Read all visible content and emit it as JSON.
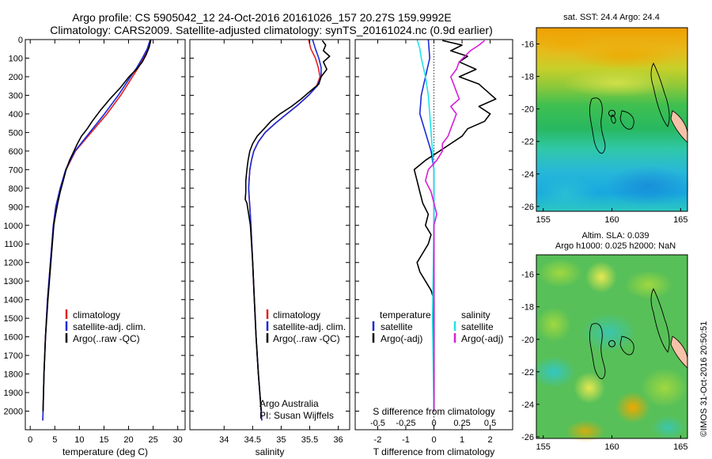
{
  "header": {
    "line1": "Argo profile: CS 5905042_12 24-Oct-2016 20161026_157 20.27S 159.9992E",
    "line2": "Climatology: CARS2009. Satellite-adjusted climatology: synTS_20161024.nc (0.9d earlier)"
  },
  "colors": {
    "climatology": "#e4201c",
    "satellite": "#1a2bd8",
    "argo": "#000000",
    "sat_salinity": "#1fe3e8",
    "argo_salinity": "#d81fd8"
  },
  "chart_data": [
    {
      "type": "line",
      "name": "temperature-profile",
      "xlabel": "temperature (deg C)",
      "xlim": [
        -1,
        31.5
      ],
      "ylim": [
        2100,
        0
      ],
      "xticks": [
        0,
        5,
        10,
        15,
        20,
        25,
        30
      ],
      "yticks": [
        0,
        100,
        200,
        300,
        400,
        500,
        600,
        700,
        800,
        900,
        1000,
        1100,
        1200,
        1300,
        1400,
        1500,
        1600,
        1700,
        1800,
        1900,
        2000
      ],
      "legend": [
        "climatology",
        "satellite-adj. clim.",
        "Argo(..raw -QC)"
      ],
      "series": [
        {
          "name": "climatology",
          "depth": [
            0,
            50,
            100,
            150,
            200,
            300,
            400,
            500,
            600,
            700,
            800,
            900,
            1000,
            1200,
            1400,
            1600,
            1800,
            2000,
            2050
          ],
          "values": [
            24.6,
            24.0,
            23.0,
            22.0,
            20.8,
            18.4,
            15.6,
            12.4,
            9.2,
            7.3,
            6.1,
            5.2,
            4.7,
            4.1,
            3.5,
            3.1,
            2.8,
            2.6,
            2.55
          ]
        },
        {
          "name": "satellite-adj. clim.",
          "depth": [
            0,
            50,
            100,
            150,
            200,
            300,
            400,
            500,
            600,
            700,
            800,
            900,
            1000,
            1200,
            1400,
            1600,
            1800,
            2000,
            2050
          ],
          "values": [
            24.4,
            23.8,
            22.8,
            21.7,
            20.4,
            17.9,
            15.1,
            12.1,
            9.1,
            7.2,
            6.1,
            5.2,
            4.7,
            4.1,
            3.5,
            3.1,
            2.8,
            2.6,
            2.55
          ]
        },
        {
          "name": "Argo(..raw -QC)",
          "depth": [
            5,
            40,
            80,
            120,
            160,
            200,
            260,
            320,
            380,
            440,
            480,
            520,
            560,
            600,
            650,
            700,
            760,
            820,
            880,
            950,
            1000,
            1200,
            1400,
            1600,
            1800,
            2000
          ],
          "values": [
            24.5,
            24.2,
            23.6,
            22.8,
            21.6,
            20.1,
            18.3,
            16.2,
            14.3,
            12.6,
            11.6,
            10.4,
            9.6,
            8.9,
            8.0,
            7.3,
            6.7,
            6.1,
            5.6,
            5.1,
            4.8,
            4.2,
            3.6,
            3.1,
            2.8,
            2.6
          ]
        }
      ]
    },
    {
      "type": "line",
      "name": "salinity-profile",
      "xlabel": "salinity",
      "xlim": [
        33.4,
        36.2
      ],
      "ylim": [
        2100,
        0
      ],
      "xticks": [
        34,
        34.5,
        35,
        35.5,
        36
      ],
      "legend": [
        "climatology",
        "satellite-adj. clim.",
        "Argo(..raw -QC)"
      ],
      "note": [
        "Argo Australia",
        "PI: Susan Wijffels"
      ],
      "series": [
        {
          "name": "climatology",
          "depth": [
            0,
            50,
            100,
            150,
            200,
            250,
            300,
            350,
            400,
            450,
            500,
            550,
            600,
            650,
            700,
            750,
            800,
            850,
            900,
            1000,
            1200,
            1400,
            1600,
            1800,
            2000,
            2050
          ],
          "values": [
            35.48,
            35.52,
            35.6,
            35.65,
            35.68,
            35.62,
            35.48,
            35.3,
            35.1,
            34.9,
            34.72,
            34.6,
            34.52,
            34.48,
            34.45,
            34.44,
            34.43,
            34.44,
            34.45,
            34.47,
            34.5,
            34.53,
            34.56,
            34.6,
            34.65,
            34.66
          ]
        },
        {
          "name": "satellite-adj. clim.",
          "depth": [
            0,
            50,
            100,
            150,
            200,
            250,
            300,
            350,
            400,
            450,
            500,
            550,
            600,
            650,
            700,
            750,
            800,
            850,
            900,
            1000,
            1200,
            1400,
            1600,
            1800,
            2000,
            2050
          ],
          "values": [
            35.55,
            35.6,
            35.66,
            35.7,
            35.7,
            35.63,
            35.48,
            35.3,
            35.1,
            34.9,
            34.72,
            34.6,
            34.52,
            34.48,
            34.45,
            34.44,
            34.43,
            34.44,
            34.45,
            34.47,
            34.5,
            34.53,
            34.56,
            34.6,
            34.65,
            34.66
          ]
        },
        {
          "name": "Argo(..raw -QC)",
          "depth": [
            5,
            30,
            60,
            90,
            120,
            160,
            200,
            240,
            280,
            320,
            360,
            400,
            440,
            480,
            520,
            560,
            600,
            650,
            700,
            760,
            820,
            860,
            880,
            920,
            1000,
            1200,
            1400,
            1600,
            1800,
            2000
          ],
          "values": [
            35.72,
            35.78,
            35.74,
            35.85,
            35.74,
            35.8,
            35.7,
            35.66,
            35.5,
            35.35,
            35.18,
            34.98,
            34.82,
            34.7,
            34.58,
            34.5,
            34.45,
            34.42,
            34.4,
            34.38,
            34.38,
            34.37,
            34.4,
            34.42,
            34.46,
            34.5,
            34.53,
            34.56,
            34.6,
            34.65
          ]
        }
      ]
    },
    {
      "type": "line",
      "name": "difference-profile",
      "xlabel_top": "S difference from climatology",
      "xlabel": "T difference from climatology",
      "xlim": [
        -2.8,
        2.8
      ],
      "ylim": [
        2100,
        0
      ],
      "xticks": [
        -2,
        -1,
        0,
        1,
        2
      ],
      "xticks_top": [
        "-0.5",
        "-0.25",
        "0",
        "0.25",
        "0.5"
      ],
      "xticks_top_pos": [
        -2,
        -1,
        0,
        1,
        2
      ],
      "legend_titles": [
        "temperature",
        "salinity"
      ],
      "legend": [
        "satellite",
        "Argo(-adj)",
        "satellite",
        "Argo(-adj)"
      ],
      "series": [
        {
          "name": "temperature satellite",
          "depth": [
            0,
            100,
            200,
            300,
            400,
            500,
            600,
            700,
            800,
            1000,
            2000
          ],
          "values": [
            -0.2,
            -0.15,
            -0.3,
            -0.45,
            -0.5,
            -0.3,
            -0.1,
            0,
            0,
            0,
            0
          ]
        },
        {
          "name": "temperature Argo(-adj)",
          "depth": [
            5,
            30,
            60,
            90,
            120,
            160,
            200,
            240,
            280,
            320,
            360,
            400,
            440,
            480,
            520,
            560,
            600,
            650,
            700,
            760,
            820,
            880,
            940,
            1000,
            1050,
            1100,
            1150,
            1200,
            1250,
            1300,
            1350,
            1400,
            1500,
            1600,
            1800,
            2000
          ],
          "values": [
            0.3,
            1.0,
            0.6,
            1.2,
            0.9,
            1.5,
            0.9,
            1.6,
            1.9,
            2.2,
            1.6,
            2.0,
            1.8,
            1.2,
            1.0,
            0.6,
            0.2,
            -0.3,
            -0.7,
            -0.6,
            -0.5,
            -0.4,
            -0.2,
            -0.3,
            -0.1,
            -0.2,
            -0.4,
            -0.6,
            -0.5,
            -0.3,
            -0.1,
            0,
            0,
            0,
            0,
            0
          ]
        },
        {
          "name": "salinity satellite",
          "depth": [
            0,
            50,
            100,
            200,
            300,
            400,
            500,
            600,
            700,
            800,
            1000,
            1500,
            2000
          ],
          "values": [
            -0.6,
            -0.5,
            -0.45,
            -0.3,
            -0.2,
            -0.15,
            -0.1,
            -0.05,
            0,
            0,
            0,
            -0.05,
            0
          ]
        },
        {
          "name": "salinity Argo(-adj)",
          "depth": [
            5,
            30,
            60,
            90,
            120,
            160,
            200,
            240,
            280,
            320,
            360,
            400,
            440,
            480,
            520,
            560,
            600,
            650,
            700,
            760,
            820,
            880,
            940,
            1000,
            1200,
            1600,
            2000
          ],
          "values": [
            1.8,
            1.6,
            1.3,
            1.1,
            0.9,
            0.8,
            0.6,
            0.7,
            0.8,
            0.9,
            0.6,
            0.8,
            0.7,
            0.6,
            0.5,
            0.3,
            0.3,
            0.1,
            -0.2,
            -0.3,
            -0.1,
            0,
            0.1,
            0,
            0,
            0,
            0
          ]
        }
      ]
    },
    {
      "type": "heatmap",
      "name": "sst-map",
      "title": "sat. SST: 24.4 Argo: 24.4",
      "xlim": [
        154.5,
        165.5
      ],
      "ylim": [
        -26.3,
        -15
      ],
      "xticks": [
        155,
        160,
        165
      ],
      "yticks": [
        -16,
        -18,
        -20,
        -22,
        -24,
        -26
      ],
      "argo_position": [
        159.9992,
        -20.27
      ]
    },
    {
      "type": "heatmap",
      "name": "sla-map",
      "title": "Altim. SLA: 0.039",
      "subtitle": "Argo h1000: 0.025 h2000: NaN",
      "xlim": [
        154.5,
        165.5
      ],
      "ylim": [
        -26.1,
        -14.8
      ],
      "xticks": [
        155,
        160,
        165
      ],
      "yticks": [
        -16,
        -18,
        -20,
        -22,
        -24,
        -26
      ],
      "argo_position": [
        159.9992,
        -20.27
      ]
    }
  ],
  "credit": "©IMOS 31-Oct-2016 20:50:51"
}
